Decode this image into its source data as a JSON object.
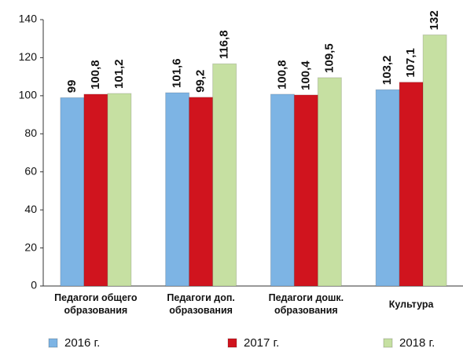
{
  "chart_data": {
    "type": "bar",
    "categories": [
      "Педагоги общего\nобразования",
      "Педагоги доп.\nобразования",
      "Педагоги дошк.\nобразования",
      "Культура"
    ],
    "series": [
      {
        "name": "2016 г.",
        "color": "#7db4e4",
        "values": [
          99,
          101.6,
          100.8,
          103.2
        ],
        "value_labels": [
          "99",
          "101,6",
          "100,8",
          "103,2"
        ]
      },
      {
        "name": "2017 г.",
        "color": "#d0141e",
        "values": [
          100.8,
          99.2,
          100.4,
          107.1
        ],
        "value_labels": [
          "100,8",
          "99,2",
          "100,4",
          "107,1"
        ]
      },
      {
        "name": "2018 г.",
        "color": "#c6e0a2",
        "values": [
          101.2,
          116.8,
          109.5,
          132
        ],
        "value_labels": [
          "101,2",
          "116,8",
          "109,5",
          "132"
        ]
      }
    ],
    "ylim": [
      0,
      140
    ],
    "yticks": [
      0,
      20,
      40,
      60,
      80,
      100,
      120,
      140
    ],
    "grid": false,
    "legend": "bottom"
  }
}
